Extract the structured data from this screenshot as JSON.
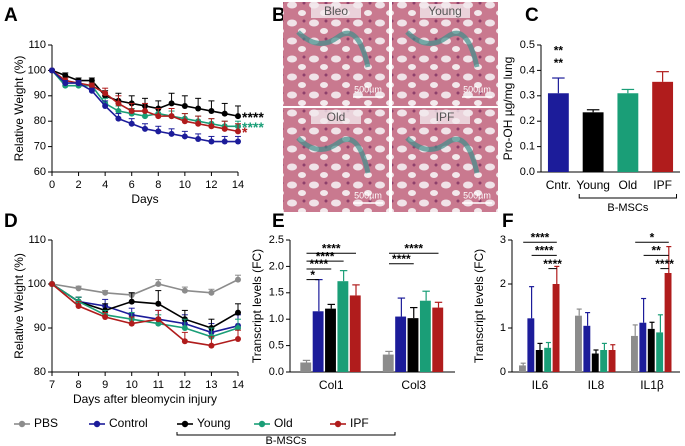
{
  "panel_labels": [
    "A",
    "B",
    "C",
    "D",
    "E",
    "F"
  ],
  "panel_b": {
    "tiles": [
      {
        "label": "Bleo",
        "scale": "500µm"
      },
      {
        "label": "Young",
        "scale": "500µm"
      },
      {
        "label": "Old",
        "scale": "500µm"
      },
      {
        "label": "IPF",
        "scale": "500µm"
      }
    ]
  },
  "legend_group": "B-MSCs",
  "chart_data": [
    {
      "type": "line",
      "x_label": "Days",
      "y_label": "Relative Weight (%)",
      "x": [
        0,
        1,
        2,
        3,
        4,
        5,
        6,
        7,
        8,
        9,
        10,
        11,
        12,
        13,
        14
      ],
      "xlim": [
        0,
        14
      ],
      "xticks": [
        0,
        2,
        4,
        6,
        8,
        10,
        12,
        14
      ],
      "ylim": [
        60,
        110
      ],
      "yticks": [
        60,
        70,
        80,
        90,
        100,
        110
      ],
      "series": [
        {
          "name": "Young",
          "color": "#000000",
          "values": [
            100,
            98,
            96,
            96,
            90,
            88,
            87,
            86,
            85,
            87,
            86,
            85,
            84,
            83,
            82
          ],
          "errors": [
            0,
            1,
            1,
            1,
            2,
            3,
            3,
            3,
            3,
            4,
            4,
            4,
            4,
            4,
            4
          ]
        },
        {
          "name": "Old",
          "color": "#1a9e77",
          "values": [
            100,
            94,
            94,
            94,
            87,
            84,
            83,
            82,
            83,
            82,
            81,
            80,
            79,
            78,
            78
          ],
          "errors": [
            0,
            1,
            1,
            1,
            2,
            2,
            2,
            2,
            2,
            2,
            2,
            2,
            2,
            2,
            2
          ]
        },
        {
          "name": "IPF",
          "color": "#b01c1c",
          "values": [
            100,
            96,
            95,
            94,
            91,
            87,
            84,
            84,
            82,
            82,
            80,
            79,
            78,
            77,
            76
          ],
          "errors": [
            0,
            1,
            1,
            1,
            2,
            3,
            3,
            3,
            3,
            3,
            3,
            3,
            3,
            3,
            3
          ]
        },
        {
          "name": "Control",
          "color": "#1c1c9a",
          "values": [
            100,
            95,
            95,
            92,
            86,
            81,
            79,
            77,
            76,
            75,
            74,
            73,
            72,
            72,
            72
          ],
          "errors": [
            0,
            1,
            1,
            1,
            2,
            2,
            2,
            2,
            2,
            2,
            2,
            2,
            2,
            2,
            2
          ]
        }
      ],
      "annotations": [
        {
          "text": "****",
          "color": "#000000"
        },
        {
          "text": "****",
          "color": "#1a9e77"
        },
        {
          "text": "*",
          "color": "#b01c1c"
        }
      ]
    },
    {
      "type": "bar",
      "y_label": "Pro-OH µg/mg lung",
      "categories": [
        "Cntr.",
        "Young",
        "Old",
        "IPF"
      ],
      "values": [
        0.31,
        0.235,
        0.31,
        0.355
      ],
      "errors": [
        0.06,
        0.01,
        0.015,
        0.04
      ],
      "colors": [
        "#1c1c9a",
        "#000000",
        "#1a9e77",
        "#b01c1c"
      ],
      "ylim": [
        0,
        0.5
      ],
      "yticks": [
        {
          "value": 0,
          "label": "0.0"
        },
        0.1,
        0.2,
        0.3,
        0.4,
        0.5
      ],
      "group_label": "B-MSCs",
      "annotations": [
        "**",
        "**"
      ]
    },
    {
      "type": "line",
      "x_label": "Days after bleomycin injury",
      "y_label": "Relative Weight (%)",
      "x": [
        7,
        8,
        9,
        10,
        11,
        12,
        13,
        14
      ],
      "xlim": [
        7,
        14
      ],
      "xticks": [
        7,
        8,
        9,
        10,
        11,
        12,
        13,
        14
      ],
      "ylim": [
        80,
        110
      ],
      "yticks": [
        80,
        90,
        100,
        110
      ],
      "series": [
        {
          "name": "PBS",
          "color": "#8c8c8c",
          "values": [
            100,
            99,
            98,
            97.5,
            100,
            98.5,
            98,
            101
          ],
          "errors": [
            0,
            0.5,
            0.5,
            0.5,
            1,
            0.8,
            0.8,
            1
          ]
        },
        {
          "name": "Control",
          "color": "#1c1c9a",
          "values": [
            100,
            96,
            95,
            93,
            92,
            91,
            89,
            90.5
          ],
          "errors": [
            0,
            1,
            1.5,
            1.5,
            2,
            2,
            2,
            2.5
          ]
        },
        {
          "name": "Young",
          "color": "#000000",
          "values": [
            100,
            96,
            94,
            96,
            95.5,
            92,
            90,
            93.5
          ],
          "errors": [
            0,
            1,
            1.5,
            2,
            3,
            2,
            2,
            2
          ]
        },
        {
          "name": "Old",
          "color": "#1a9e77",
          "values": [
            100,
            96,
            93,
            92,
            91,
            90,
            88,
            90
          ],
          "errors": [
            0,
            1,
            1,
            1.5,
            2,
            2,
            2,
            2
          ]
        },
        {
          "name": "IPF",
          "color": "#b01c1c",
          "values": [
            100,
            95,
            92.5,
            91,
            92,
            87,
            86,
            87.5
          ],
          "errors": [
            0,
            1,
            1,
            1.5,
            2,
            2,
            2,
            2
          ]
        }
      ]
    },
    {
      "type": "bar",
      "y_label": "Transcript levels (FC)",
      "categories": [
        "Col1",
        "Col3"
      ],
      "ylim": [
        0,
        2.5
      ],
      "yticks": [
        {
          "value": 0,
          "label": "0.0"
        },
        0.5,
        {
          "value": 1,
          "label": "1.0"
        },
        1.5,
        {
          "value": 2,
          "label": "2.0"
        },
        2.5
      ],
      "series": [
        {
          "name": "PBS",
          "color": "#8c8c8c",
          "values": [
            0.18,
            0.33
          ],
          "errors": [
            0.04,
            0.06
          ]
        },
        {
          "name": "Control",
          "color": "#1c1c9a",
          "values": [
            1.15,
            1.05
          ],
          "errors": [
            0.6,
            0.35
          ]
        },
        {
          "name": "Young",
          "color": "#000000",
          "values": [
            1.2,
            1.02
          ],
          "errors": [
            0.08,
            0.2
          ]
        },
        {
          "name": "Old",
          "color": "#1a9e77",
          "values": [
            1.72,
            1.35
          ],
          "errors": [
            0.2,
            0.18
          ]
        },
        {
          "name": "IPF",
          "color": "#b01c1c",
          "values": [
            1.45,
            1.22
          ],
          "errors": [
            0.2,
            0.1
          ]
        }
      ],
      "annotations": [
        "*",
        "****",
        "****",
        "****",
        "****",
        "****"
      ]
    },
    {
      "type": "bar",
      "y_label": "Transcript levels (FC)",
      "categories": [
        "IL6",
        "IL8",
        "IL1β"
      ],
      "ylim": [
        0,
        3
      ],
      "yticks": [
        0,
        1,
        2,
        3
      ],
      "series": [
        {
          "name": "PBS",
          "color": "#8c8c8c",
          "values": [
            0.15,
            1.28,
            0.82
          ],
          "errors": [
            0.05,
            0.15,
            0.25
          ]
        },
        {
          "name": "Control",
          "color": "#1c1c9a",
          "values": [
            1.22,
            1.05,
            1.12
          ],
          "errors": [
            0.72,
            0.3,
            0.55
          ]
        },
        {
          "name": "Young",
          "color": "#000000",
          "values": [
            0.5,
            0.42,
            0.98
          ],
          "errors": [
            0.15,
            0.08,
            0.15
          ]
        },
        {
          "name": "Old",
          "color": "#1a9e77",
          "values": [
            0.55,
            0.5,
            0.9
          ],
          "errors": [
            0.12,
            0.15,
            0.4
          ]
        },
        {
          "name": "IPF",
          "color": "#b01c1c",
          "values": [
            2.0,
            0.5,
            2.25
          ],
          "errors": [
            0.4,
            0.12,
            0.6
          ]
        }
      ],
      "annotations": [
        "****",
        "****",
        "****",
        "*",
        "**",
        "****"
      ]
    }
  ]
}
